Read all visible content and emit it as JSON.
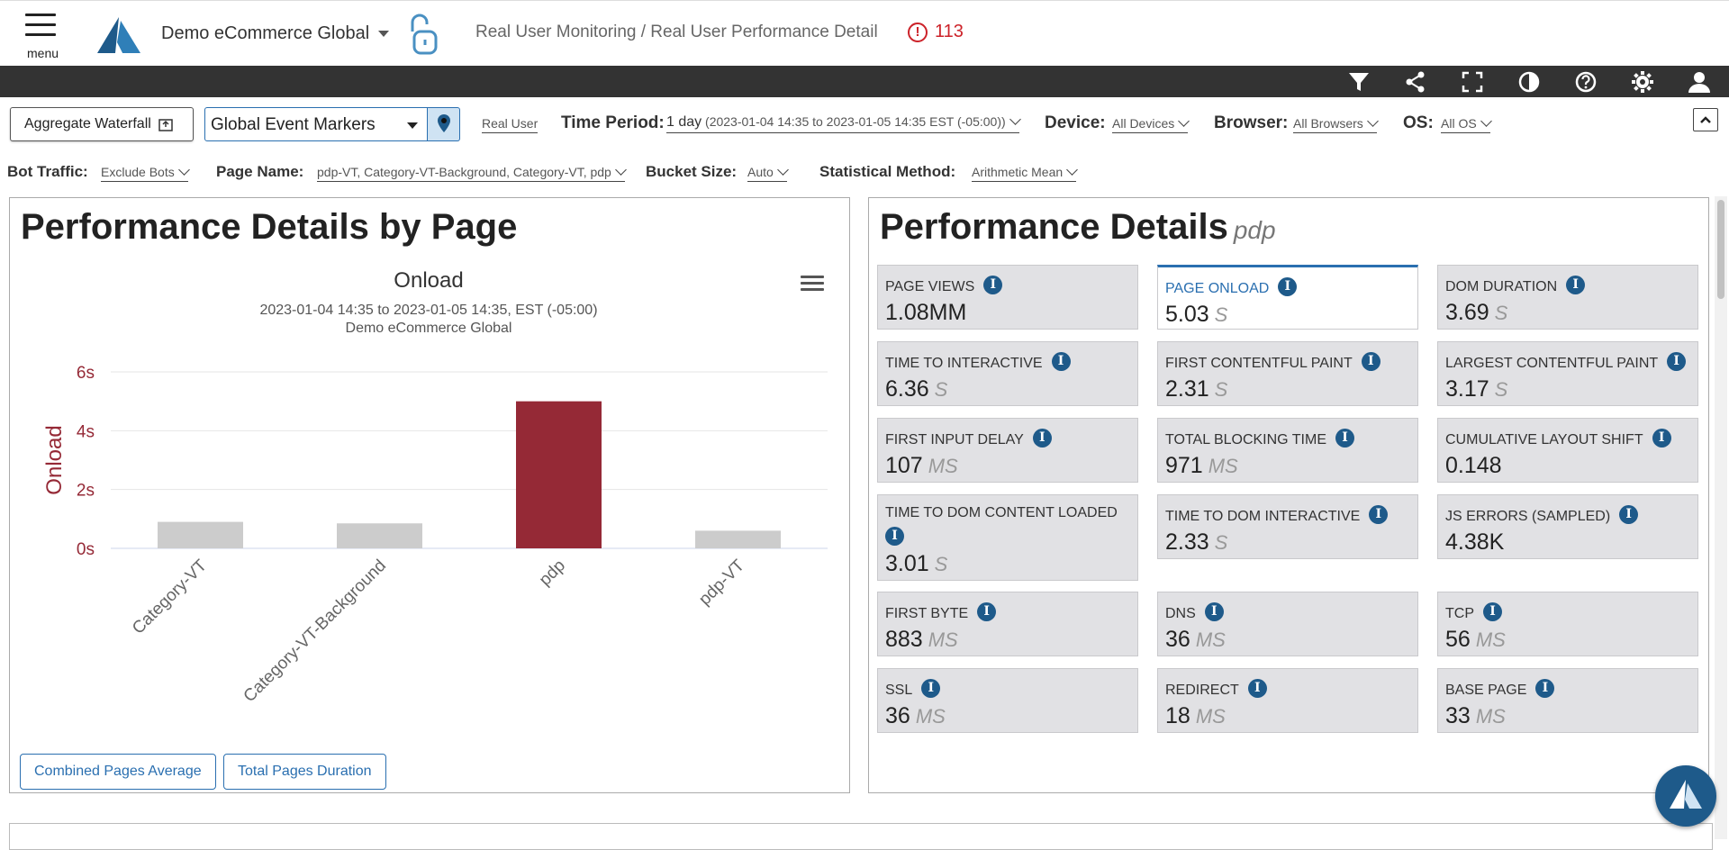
{
  "header": {
    "menu_label": "menu",
    "app_name": "Demo eCommerce Global",
    "breadcrumb": "Real User Monitoring / Real User Performance Detail",
    "alert_count": "113"
  },
  "toolbar": {
    "icons": [
      "filter-icon",
      "share-icon",
      "fullscreen-icon",
      "contrast-icon",
      "help-icon",
      "settings-icon",
      "user-icon"
    ]
  },
  "filters": {
    "aggregate_waterfall": "Aggregate Waterfall",
    "event_markers": "Global Event Markers",
    "data_source": "Real User",
    "time_period_label": "Time Period:",
    "time_period_value": "1 day",
    "time_period_range": "(2023-01-04 14:35 to 2023-01-05 14:35 EST (-05:00))",
    "device_label": "Device:",
    "device_value": "All Devices",
    "browser_label": "Browser:",
    "browser_value": "All Browsers",
    "os_label": "OS:",
    "os_value": "All OS",
    "bot_label": "Bot Traffic:",
    "bot_value": "Exclude Bots",
    "page_label": "Page Name:",
    "page_value": "pdp-VT, Category-VT-Background, Category-VT, pdp",
    "bucket_label": "Bucket Size:",
    "bucket_value": "Auto",
    "stat_label": "Statistical Method:",
    "stat_value": "Arithmetic Mean"
  },
  "left_panel": {
    "title": "Performance Details by Page",
    "chart_title": "Onload",
    "chart_range": "2023-01-04 14:35 to 2023-01-05 14:35, EST (-05:00)",
    "chart_source": "Demo eCommerce Global",
    "buttons": [
      "Combined Pages Average",
      "Total Pages Duration"
    ]
  },
  "chart_data": {
    "type": "bar",
    "title": "Onload",
    "ylabel": "Onload",
    "xlabel": "",
    "categories": [
      "Category-VT",
      "Category-VT-Background",
      "pdp",
      "pdp-VT"
    ],
    "values": [
      0.9,
      0.85,
      5.0,
      0.6
    ],
    "highlighted": "pdp",
    "ylim": [
      0,
      6
    ],
    "yticks": [
      0,
      2,
      4,
      6
    ],
    "ytick_labels": [
      "0s",
      "2s",
      "4s",
      "6s"
    ],
    "colors": {
      "bar": "#cccccc",
      "highlight": "#952936",
      "axis_label": "#952936"
    },
    "grid": true
  },
  "right_panel": {
    "title": "Performance Details",
    "subtitle": "pdp",
    "tiles": [
      {
        "label": "Page Views",
        "value": "1.08MM",
        "unit": ""
      },
      {
        "label": "Page Onload",
        "value": "5.03",
        "unit": "S"
      },
      {
        "label": "DOM Duration",
        "value": "3.69",
        "unit": "S"
      },
      {
        "label": "Time To Interactive",
        "value": "6.36",
        "unit": "S"
      },
      {
        "label": "First Contentful Paint",
        "value": "2.31",
        "unit": "S"
      },
      {
        "label": "Largest Contentful Paint",
        "value": "3.17",
        "unit": "S"
      },
      {
        "label": "First Input Delay",
        "value": "107",
        "unit": "MS"
      },
      {
        "label": "Total Blocking Time",
        "value": "971",
        "unit": "MS"
      },
      {
        "label": "Cumulative Layout Shift",
        "value": "0.148",
        "unit": ""
      },
      {
        "label": "Time To DOM Content Loaded",
        "value": "3.01",
        "unit": "S"
      },
      {
        "label": "Time To DOM Interactive",
        "value": "2.33",
        "unit": "S"
      },
      {
        "label": "JS Errors (Sampled)",
        "value": "4.38K",
        "unit": ""
      },
      {
        "label": "First Byte",
        "value": "883",
        "unit": "MS"
      },
      {
        "label": "DNS",
        "value": "36",
        "unit": "MS"
      },
      {
        "label": "TCP",
        "value": "56",
        "unit": "MS"
      },
      {
        "label": "SSL",
        "value": "36",
        "unit": "MS"
      },
      {
        "label": "Redirect",
        "value": "18",
        "unit": "MS"
      },
      {
        "label": "Base Page",
        "value": "33",
        "unit": "MS"
      }
    ]
  }
}
